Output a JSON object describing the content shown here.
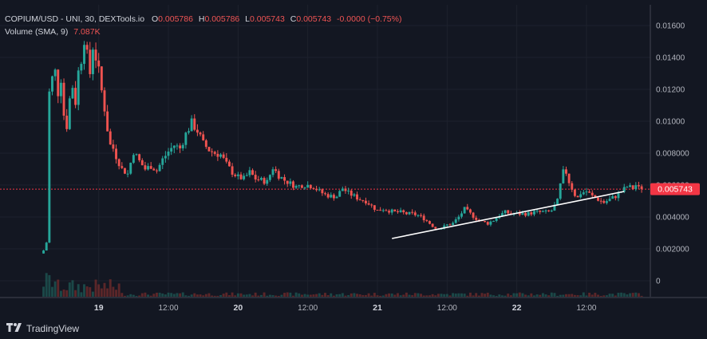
{
  "legend": {
    "symbol": "COPIUM/USD - UNI, 30, DEXTools.io",
    "o_label": "O",
    "o_value": "0.005786",
    "h_label": "H",
    "h_value": "0.005786",
    "l_label": "L",
    "l_value": "0.005743",
    "c_label": "C",
    "c_value": "0.005743",
    "change": "-0.0000 (−0.75%)",
    "volume_label": "Volume (SMA, 9)",
    "volume_value": "7.087K"
  },
  "price_badge": "0.005743",
  "branding": "TradingView",
  "colors": {
    "up": "#26a69a",
    "down": "#ef5350",
    "background": "#131722",
    "badge": "#f23645"
  },
  "chart_data": {
    "type": "candlestick",
    "ylim": [
      -0.001,
      0.0173
    ],
    "y_ticks": [
      "0.01600",
      "0.01400",
      "0.01200",
      "0.01000",
      "0.008000",
      "0.006000",
      "0.004000",
      "0.002000",
      "0"
    ],
    "y_tick_values": [
      0.016,
      0.014,
      0.012,
      0.01,
      0.008,
      0.006,
      0.004,
      0.002,
      0
    ],
    "x_ticks": [
      {
        "label": "19",
        "hour": 36,
        "bold": true
      },
      {
        "label": "12:00",
        "hour": 48,
        "bold": false
      },
      {
        "label": "20",
        "hour": 60,
        "bold": true
      },
      {
        "label": "12:00",
        "hour": 72,
        "bold": false
      },
      {
        "label": "21",
        "hour": 84,
        "bold": true
      },
      {
        "label": "12:00",
        "hour": 96,
        "bold": false
      },
      {
        "label": "22",
        "hour": 108,
        "bold": true
      },
      {
        "label": "12:00",
        "hour": 120,
        "bold": false
      }
    ],
    "x_range_hours": [
      19,
      131
    ],
    "current_price": 0.005743,
    "trendline": {
      "from": {
        "hour": 86.5,
        "price": 0.00265
      },
      "to": {
        "hour": 126.5,
        "price": 0.0056
      }
    },
    "close_path": [
      [
        26.5,
        0.0019
      ],
      [
        27,
        0.0024
      ],
      [
        27.5,
        0.0118
      ],
      [
        28,
        0.0127
      ],
      [
        28.5,
        0.0131
      ],
      [
        29,
        0.0118
      ],
      [
        29.5,
        0.0127
      ],
      [
        30,
        0.0104
      ],
      [
        30.5,
        0.0097
      ],
      [
        31,
        0.0114
      ],
      [
        31.5,
        0.0122
      ],
      [
        32,
        0.0112
      ],
      [
        32.5,
        0.0131
      ],
      [
        33,
        0.0139
      ],
      [
        33.5,
        0.0152
      ],
      [
        34,
        0.0141
      ],
      [
        34.5,
        0.013
      ],
      [
        35,
        0.0147
      ],
      [
        35.5,
        0.014
      ],
      [
        36,
        0.0131
      ],
      [
        36.5,
        0.0119
      ],
      [
        37,
        0.0108
      ],
      [
        37.5,
        0.0095
      ],
      [
        38,
        0.0085
      ],
      [
        38.5,
        0.0083
      ],
      [
        39,
        0.0078
      ],
      [
        39.5,
        0.0074
      ],
      [
        40,
        0.007
      ],
      [
        41,
        0.0067
      ],
      [
        42,
        0.0081
      ],
      [
        43,
        0.0075
      ],
      [
        44,
        0.007
      ],
      [
        45,
        0.0072
      ],
      [
        46,
        0.0069
      ],
      [
        47,
        0.0076
      ],
      [
        48,
        0.0081
      ],
      [
        49,
        0.0085
      ],
      [
        50,
        0.0083
      ],
      [
        51,
        0.0092
      ],
      [
        52,
        0.0099
      ],
      [
        53,
        0.0094
      ],
      [
        54,
        0.0086
      ],
      [
        55,
        0.0082
      ],
      [
        56,
        0.008
      ],
      [
        57,
        0.0079
      ],
      [
        58,
        0.0073
      ],
      [
        59,
        0.0068
      ],
      [
        60,
        0.0065
      ],
      [
        61,
        0.0064
      ],
      [
        62,
        0.0068
      ],
      [
        63,
        0.0064
      ],
      [
        64,
        0.0063
      ],
      [
        65,
        0.0062
      ],
      [
        66,
        0.0071
      ],
      [
        67,
        0.0066
      ],
      [
        68,
        0.0063
      ],
      [
        69,
        0.0061
      ],
      [
        70,
        0.0059
      ],
      [
        71,
        0.006
      ],
      [
        72,
        0.006
      ],
      [
        73,
        0.0059
      ],
      [
        74,
        0.0056
      ],
      [
        75,
        0.0054
      ],
      [
        76,
        0.0053
      ],
      [
        77,
        0.0053
      ],
      [
        78,
        0.0058
      ],
      [
        79,
        0.0055
      ],
      [
        80,
        0.0053
      ],
      [
        81,
        0.0051
      ],
      [
        82,
        0.005
      ],
      [
        83,
        0.0047
      ],
      [
        84,
        0.0044
      ],
      [
        85,
        0.0045
      ],
      [
        86,
        0.0044
      ],
      [
        87,
        0.0043
      ],
      [
        88,
        0.0043
      ],
      [
        89,
        0.0042
      ],
      [
        90,
        0.0042
      ],
      [
        91,
        0.0041
      ],
      [
        92,
        0.0039
      ],
      [
        93,
        0.0036
      ],
      [
        94,
        0.0033
      ],
      [
        95,
        0.0033
      ],
      [
        96,
        0.0035
      ],
      [
        97,
        0.0036
      ],
      [
        98,
        0.004
      ],
      [
        99,
        0.0045
      ],
      [
        100,
        0.0042
      ],
      [
        101,
        0.0039
      ],
      [
        102,
        0.0037
      ],
      [
        103,
        0.0036
      ],
      [
        104,
        0.0038
      ],
      [
        105,
        0.0041
      ],
      [
        106,
        0.0043
      ],
      [
        107,
        0.0042
      ],
      [
        108,
        0.0042
      ],
      [
        109,
        0.0042
      ],
      [
        110,
        0.0042
      ],
      [
        111,
        0.0043
      ],
      [
        112,
        0.0043
      ],
      [
        113,
        0.0043
      ],
      [
        114,
        0.0044
      ],
      [
        115,
        0.005
      ],
      [
        115.5,
        0.006
      ],
      [
        116,
        0.0068
      ],
      [
        116.5,
        0.0068
      ],
      [
        117,
        0.0062
      ],
      [
        117.5,
        0.0058
      ],
      [
        118,
        0.0054
      ],
      [
        118.5,
        0.0052
      ],
      [
        119,
        0.0055
      ],
      [
        120,
        0.0056
      ],
      [
        121,
        0.0053
      ],
      [
        122,
        0.0051
      ],
      [
        123,
        0.0049
      ],
      [
        124,
        0.0051
      ],
      [
        125,
        0.0053
      ],
      [
        126,
        0.0056
      ],
      [
        127,
        0.0059
      ],
      [
        128,
        0.0058
      ],
      [
        128.5,
        0.006
      ],
      [
        129,
        0.0058
      ],
      [
        129.5,
        0.005743
      ]
    ]
  }
}
